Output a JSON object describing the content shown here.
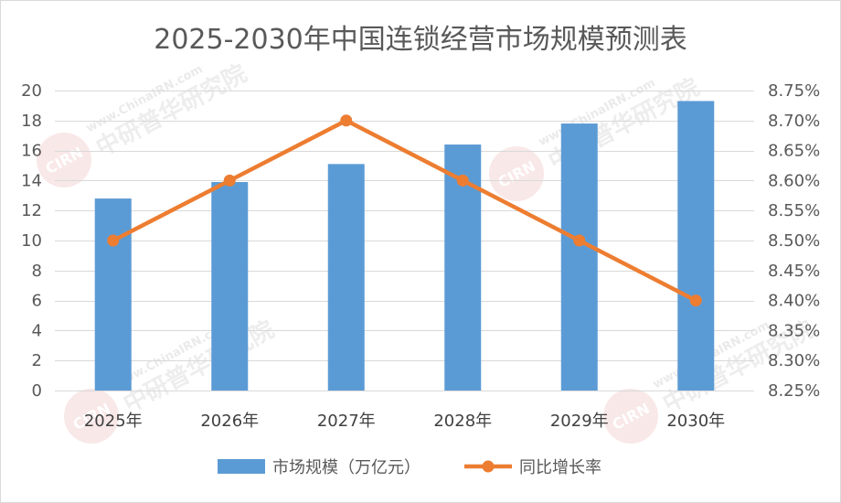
{
  "chart_data": {
    "type": "bar",
    "title": "2025-2030年中国连锁经营市场规模预测表",
    "categories": [
      "2025年",
      "2026年",
      "2027年",
      "2028年",
      "2029年",
      "2030年"
    ],
    "series": [
      {
        "name": "市场规模（万亿元）",
        "type": "bar",
        "axis": "left",
        "color": "#5B9BD5",
        "values": [
          12.8,
          13.9,
          15.1,
          16.4,
          17.8,
          19.3
        ]
      },
      {
        "name": "同比增长率",
        "type": "line",
        "axis": "right",
        "marker": "circle",
        "color": "#ED7D31",
        "values": [
          8.5,
          8.6,
          8.7,
          8.6,
          8.5,
          8.4
        ]
      }
    ],
    "xlabel": "",
    "ylabel": "",
    "ylim": [
      0,
      20
    ],
    "yticks": [
      0,
      2,
      4,
      6,
      8,
      10,
      12,
      14,
      16,
      18,
      20
    ],
    "y2lim": [
      8.25,
      8.75
    ],
    "y2ticks": [
      "8.25%",
      "8.30%",
      "8.35%",
      "8.40%",
      "8.45%",
      "8.50%",
      "8.55%",
      "8.60%",
      "8.65%",
      "8.70%",
      "8.75%"
    ],
    "grid": true,
    "legend": "bottom"
  },
  "watermark": {
    "logo": "CIRN",
    "site": "www.ChinaIRN.com",
    "name": "中研普华研究院"
  }
}
